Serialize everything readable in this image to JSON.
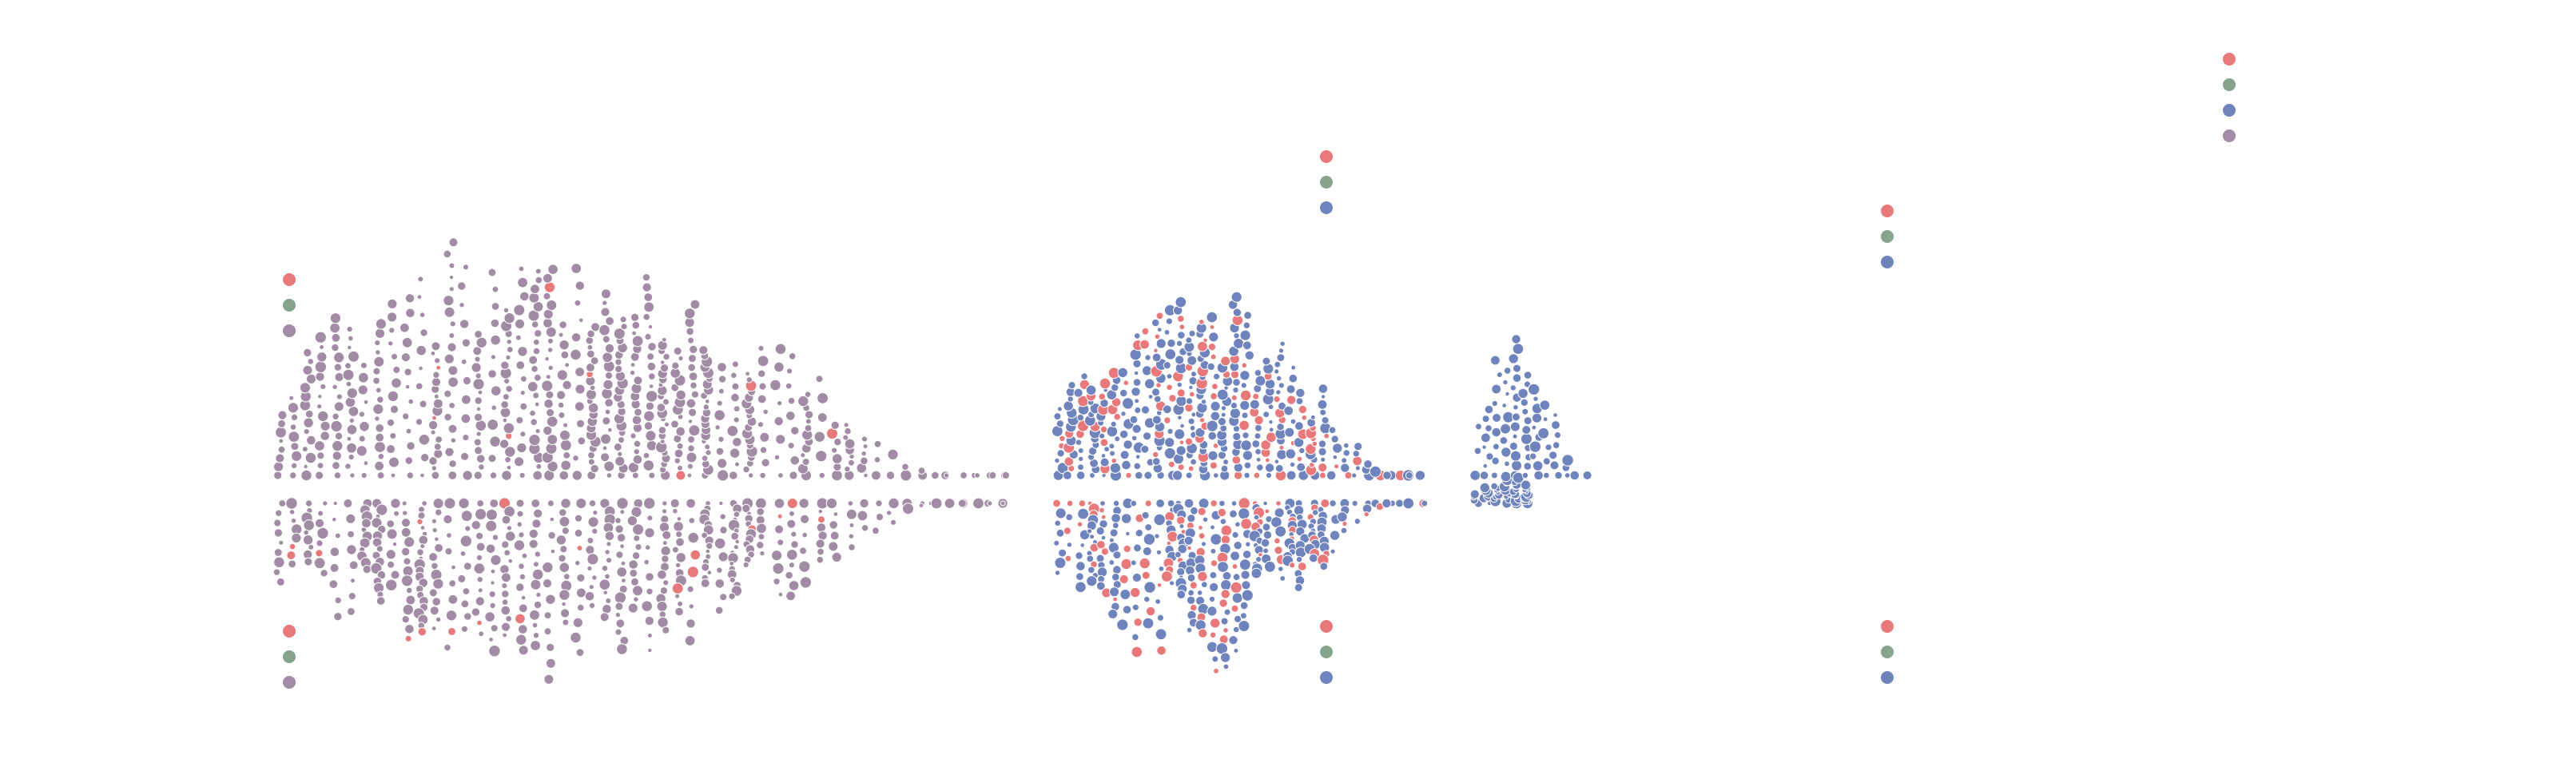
{
  "chart_data": {
    "type": "scatter",
    "title": "",
    "xlabel": "",
    "ylabel": "",
    "grid": false,
    "axes_visible": false,
    "x_domain": [
      0,
      100
    ],
    "y_domain": [
      -10,
      10
    ],
    "color_keys": [
      {
        "key": "red",
        "hex": "#e8797a"
      },
      {
        "key": "green",
        "hex": "#86a38c"
      },
      {
        "key": "blue",
        "hex": "#6f83bd"
      },
      {
        "key": "mauve",
        "hex": "#a28ca5"
      }
    ],
    "panels": [
      {
        "id": "left",
        "x_range": [
          0,
          40
        ],
        "dominant": "mauve",
        "accent": "red",
        "accent_ratio": 0.02,
        "points_per_column": 26,
        "columns": 52
      },
      {
        "id": "middle",
        "x_range": [
          43,
          63
        ],
        "dominant": "blue",
        "accent": "red",
        "accent_ratio": 0.28,
        "points_per_column": 24,
        "columns": 34
      },
      {
        "id": "right",
        "x_range": [
          66,
          72
        ],
        "dominant": "blue",
        "accent": "red",
        "accent_ratio": 0.0,
        "points_per_column": 14,
        "columns": 12
      }
    ],
    "legend_swatches": [
      {
        "group": "left-top",
        "colors": [
          "red",
          "green",
          "mauve"
        ]
      },
      {
        "group": "left-bottom",
        "colors": [
          "red",
          "green",
          "mauve"
        ]
      },
      {
        "group": "middle-top",
        "colors": [
          "red",
          "green",
          "blue"
        ]
      },
      {
        "group": "middle-bottom",
        "colors": [
          "red",
          "green",
          "blue"
        ]
      },
      {
        "group": "right-top",
        "colors": [
          "red",
          "green",
          "blue"
        ]
      },
      {
        "group": "right-bottom",
        "colors": [
          "red",
          "green",
          "blue"
        ]
      },
      {
        "group": "far-right",
        "colors": [
          "red",
          "green",
          "blue",
          "mauve"
        ]
      }
    ]
  }
}
